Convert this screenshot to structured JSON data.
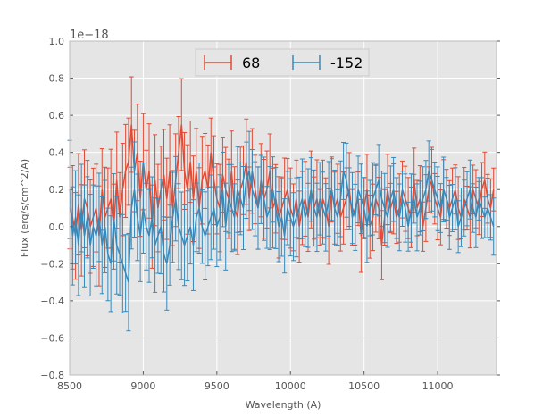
{
  "chart_data": {
    "type": "line",
    "title": "",
    "xlabel": "Wavelength (A)",
    "ylabel": "Flux (erg/s/cm^2/A)",
    "y_offset_text": "1e−18",
    "xlim": [
      8500,
      11400
    ],
    "ylim": [
      -0.8,
      1.0
    ],
    "xticks": [
      8500,
      9000,
      9500,
      10000,
      10500,
      11000
    ],
    "yticks": [
      -0.8,
      -0.6,
      -0.4,
      -0.2,
      0.0,
      0.2,
      0.4,
      0.6,
      0.8,
      1.0
    ],
    "ytick_labels": [
      "−0.8",
      "−0.6",
      "−0.4",
      "−0.2",
      "0.0",
      "0.2",
      "0.4",
      "0.6",
      "0.8",
      "1.0"
    ],
    "grid": true,
    "legend_position": "top-center",
    "x_start": 8500,
    "x_step": 20,
    "series": [
      {
        "name": "68",
        "color": "#e24a33",
        "values": [
          0.1,
          0.05,
          -0.05,
          0.12,
          -0.02,
          0.15,
          0.1,
          0.0,
          0.05,
          0.1,
          -0.05,
          0.2,
          0.05,
          0.1,
          0.15,
          0.0,
          0.25,
          0.05,
          0.2,
          0.3,
          0.35,
          0.55,
          0.3,
          0.4,
          0.15,
          0.35,
          0.2,
          0.3,
          0.0,
          0.25,
          0.1,
          0.2,
          0.28,
          0.15,
          0.3,
          0.1,
          0.25,
          0.4,
          0.55,
          0.3,
          0.2,
          0.35,
          0.15,
          0.3,
          0.1,
          0.25,
          0.3,
          0.2,
          0.4,
          0.25,
          0.15,
          0.1,
          0.28,
          0.2,
          0.15,
          0.3,
          0.1,
          0.05,
          0.2,
          0.25,
          0.35,
          0.15,
          0.3,
          0.2,
          0.1,
          0.25,
          0.15,
          0.2,
          0.3,
          0.1,
          0.15,
          0.05,
          0.1,
          0.15,
          0.2,
          0.1,
          0.05,
          0.15,
          0.0,
          0.1,
          0.15,
          0.05,
          0.2,
          0.1,
          0.15,
          0.05,
          0.15,
          0.1,
          0.0,
          0.2,
          0.1,
          0.15,
          0.05,
          0.1,
          0.15,
          0.2,
          0.05,
          0.1,
          0.15,
          -0.05,
          0.1,
          0.2,
          0.0,
          0.05,
          0.15,
          0.1,
          -0.1,
          0.05,
          0.2,
          0.1,
          0.15,
          0.05,
          0.1,
          0.2,
          0.15,
          0.1,
          0.05,
          0.25,
          0.1,
          0.15,
          0.0,
          0.1,
          0.2,
          0.25,
          0.15,
          0.1,
          0.05,
          0.2,
          0.15,
          0.1,
          0.15,
          0.2,
          0.1,
          0.05,
          0.15,
          0.1,
          0.05,
          0.2,
          0.15,
          0.1,
          0.2,
          0.25,
          0.15,
          0.1,
          0.2
        ]
      },
      {
        "name": "-152",
        "color": "#348abd",
        "values": [
          0.2,
          -0.05,
          0.05,
          -0.1,
          0.1,
          -0.05,
          0.05,
          -0.1,
          0.0,
          -0.05,
          0.05,
          -0.1,
          0.0,
          -0.15,
          -0.2,
          0.05,
          -0.1,
          -0.15,
          -0.2,
          -0.25,
          -0.3,
          0.1,
          0.2,
          0.05,
          -0.05,
          0.1,
          0.0,
          -0.05,
          0.05,
          -0.1,
          -0.05,
          0.0,
          -0.15,
          -0.2,
          -0.1,
          0.05,
          0.15,
          0.0,
          -0.05,
          -0.1,
          -0.05,
          0.0,
          -0.1,
          0.05,
          0.1,
          0.0,
          -0.05,
          0.0,
          0.05,
          0.1,
          0.0,
          0.05,
          0.2,
          0.0,
          0.15,
          0.1,
          0.05,
          0.2,
          0.15,
          0.1,
          0.25,
          0.3,
          0.2,
          0.15,
          0.1,
          0.2,
          0.15,
          0.05,
          0.1,
          0.2,
          0.1,
          0.0,
          0.05,
          -0.05,
          0.1,
          0.05,
          0.0,
          0.05,
          0.1,
          0.15,
          0.05,
          0.1,
          0.2,
          0.1,
          0.05,
          0.15,
          0.1,
          0.05,
          0.15,
          0.2,
          0.1,
          0.05,
          0.15,
          0.3,
          0.25,
          0.15,
          0.1,
          0.05,
          0.2,
          0.15,
          0.1,
          0.0,
          0.1,
          0.15,
          0.2,
          0.25,
          0.15,
          0.1,
          0.05,
          0.15,
          0.2,
          0.1,
          0.05,
          0.15,
          0.1,
          0.0,
          0.1,
          0.15,
          0.05,
          0.1,
          0.15,
          0.2,
          0.3,
          0.25,
          0.2,
          0.15,
          0.1,
          0.2,
          0.15,
          0.05,
          0.1,
          0.15,
          0.0,
          0.05,
          0.1,
          0.15,
          0.2,
          0.1,
          0.05,
          0.15,
          0.1,
          0.05,
          0.1,
          0.05,
          0.0
        ]
      }
    ],
    "error_bar_note": "symmetric y error bars, approx ±0.15–0.25 at short wavelengths decreasing to ±0.08–0.12 at long wavelengths"
  }
}
